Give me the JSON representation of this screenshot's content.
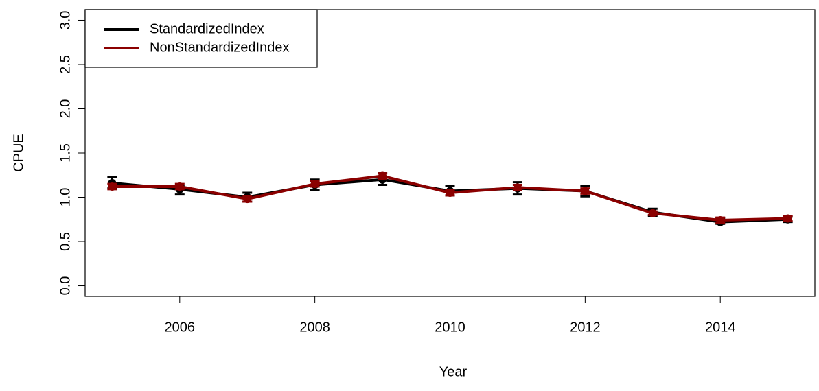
{
  "chart_data": {
    "type": "line",
    "x_label": "Year",
    "y_label": "CPUE",
    "x": [
      2005,
      2006,
      2007,
      2008,
      2009,
      2010,
      2011,
      2012,
      2013,
      2014,
      2015
    ],
    "series": [
      {
        "name": "StandardizedIndex",
        "color": "#000000",
        "values": [
          1.16,
          1.09,
          1.0,
          1.14,
          1.2,
          1.07,
          1.1,
          1.07,
          0.83,
          0.72,
          0.75
        ],
        "lower": [
          1.1,
          1.03,
          0.95,
          1.08,
          1.14,
          1.02,
          1.03,
          1.01,
          0.79,
          0.7,
          0.72
        ],
        "upper": [
          1.23,
          1.13,
          1.05,
          1.2,
          1.27,
          1.13,
          1.17,
          1.13,
          0.87,
          0.76,
          0.78
        ]
      },
      {
        "name": "NonStandardizedIndex",
        "color": "#8b0000",
        "values": [
          1.12,
          1.12,
          0.98,
          1.15,
          1.24,
          1.05,
          1.11,
          1.07,
          0.82,
          0.74,
          0.76
        ],
        "lower": [
          1.09,
          1.09,
          0.95,
          1.12,
          1.21,
          1.02,
          1.08,
          1.04,
          0.8,
          0.71,
          0.73
        ],
        "upper": [
          1.15,
          1.15,
          1.01,
          1.18,
          1.27,
          1.08,
          1.14,
          1.1,
          0.84,
          0.77,
          0.79
        ]
      }
    ],
    "xlim": [
      2004.6,
      2015.4
    ],
    "xticks": [
      2006,
      2008,
      2010,
      2012,
      2014
    ],
    "ylim": [
      -0.12,
      3.12
    ],
    "yticks": [
      {
        "value": 0,
        "label": "0.0"
      },
      0.5,
      {
        "value": 1,
        "label": "1.0"
      },
      1.5,
      {
        "value": 2,
        "label": "2.0"
      },
      2.5,
      {
        "value": 3,
        "label": "3.0"
      }
    ],
    "legend": "top-left"
  }
}
